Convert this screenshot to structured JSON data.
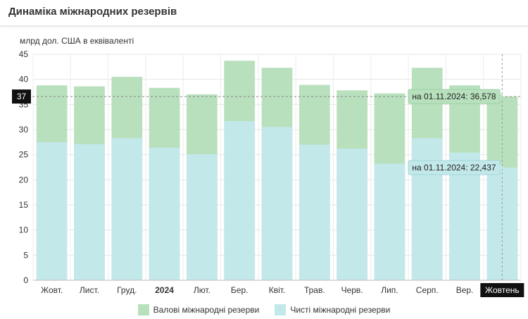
{
  "page": {
    "title": "Динаміка міжнародних резервів"
  },
  "chart_data": {
    "type": "bar",
    "stacked_overlay": true,
    "ylabel": "млрд дол. США в еквіваленті",
    "ylim": [
      0,
      45
    ],
    "yticks": [
      0,
      5,
      10,
      15,
      20,
      25,
      30,
      35,
      40,
      45
    ],
    "grid": true,
    "legend_position": "bottom",
    "categories": [
      "Жовт.",
      "Лист.",
      "Груд.",
      "2024",
      "Лют.",
      "Бер.",
      "Квіт.",
      "Трав.",
      "Черв.",
      "Лип.",
      "Серп.",
      "Вер.",
      "Жовтень"
    ],
    "bold_categories": [
      "2024"
    ],
    "highlighted_category": "Жовтень",
    "series": [
      {
        "name": "Валові міжнародні резерви",
        "color": "#b8e0bd",
        "values": [
          38.8,
          38.6,
          40.5,
          38.3,
          37.0,
          43.7,
          42.3,
          38.9,
          37.8,
          37.2,
          42.3,
          38.8,
          36.578
        ]
      },
      {
        "name": "Чисті міжнародні резерви",
        "color": "#c3e8ea",
        "values": [
          27.5,
          27.1,
          28.3,
          26.4,
          25.1,
          31.7,
          30.5,
          27.0,
          26.2,
          23.2,
          28.3,
          25.4,
          22.437
        ]
      }
    ],
    "reference_line": {
      "value": 36.578,
      "label": "37"
    },
    "annotations": [
      {
        "text": "на 01.11.2024: 36,578",
        "value": 36.578
      },
      {
        "text": "на 01.11.2024: 22,437",
        "value": 22.437
      }
    ]
  }
}
